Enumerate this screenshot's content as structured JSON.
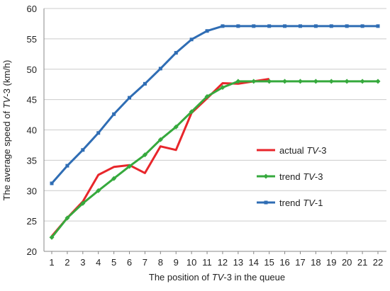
{
  "chart_data": {
    "type": "line",
    "title": "",
    "xlabel": {
      "prefix": "The position of ",
      "italic": "TV",
      "suffix": "-3 in the queue"
    },
    "ylabel": {
      "prefix": "The average speed of ",
      "italic": "TV",
      "suffix": "-3 (km/h)"
    },
    "x": [
      1,
      2,
      3,
      4,
      5,
      6,
      7,
      8,
      9,
      10,
      11,
      12,
      13,
      14,
      15,
      16,
      17,
      18,
      19,
      20,
      21,
      22
    ],
    "x_tick_labels": [
      "1",
      "2",
      "3",
      "4",
      "5",
      "6",
      "7",
      "8",
      "9",
      "10",
      "11",
      "12",
      "13",
      "14",
      "15",
      "16",
      "17",
      "18",
      "19",
      "20",
      "21",
      "22"
    ],
    "y_tick_labels": [
      "20",
      "25",
      "30",
      "35",
      "40",
      "45",
      "50",
      "55",
      "60"
    ],
    "ylim": [
      20,
      60
    ],
    "xlim": [
      1,
      22
    ],
    "grid": {
      "horizontal": true,
      "vertical": false
    },
    "legend_placement": "right-middle",
    "series": [
      {
        "name": {
          "prefix": "actual ",
          "italic": "TV",
          "suffix": "-3"
        },
        "color": "#e8262b",
        "marker": "none",
        "x": [
          1,
          2,
          3,
          4,
          5,
          6,
          7,
          8,
          9,
          10,
          11,
          12,
          13,
          14,
          15
        ],
        "values": [
          22.5,
          25.5,
          28.2,
          32.6,
          33.9,
          34.2,
          32.9,
          37.3,
          36.7,
          42.8,
          45.2,
          47.7,
          47.6,
          48.0,
          48.4
        ]
      },
      {
        "name": {
          "prefix": "trend ",
          "italic": "TV",
          "suffix": "-3"
        },
        "color": "#36a93d",
        "marker": "diamond",
        "x": [
          1,
          2,
          3,
          4,
          5,
          6,
          7,
          8,
          9,
          10,
          11,
          12,
          13,
          14,
          15,
          16,
          17,
          18,
          19,
          20,
          21,
          22
        ],
        "values": [
          22.3,
          25.5,
          27.9,
          30.0,
          32.0,
          34.0,
          35.9,
          38.4,
          40.5,
          43.0,
          45.5,
          47.0,
          48.0,
          48.0,
          48.0,
          48.0,
          48.0,
          48.0,
          48.0,
          48.0,
          48.0,
          48.0
        ]
      },
      {
        "name": {
          "prefix": "trend ",
          "italic": "TV",
          "suffix": "-1"
        },
        "color": "#2f6db4",
        "marker": "square",
        "x": [
          1,
          2,
          3,
          4,
          5,
          6,
          7,
          8,
          9,
          10,
          11,
          12,
          13,
          14,
          15,
          16,
          17,
          18,
          19,
          20,
          21,
          22
        ],
        "values": [
          31.2,
          34.1,
          36.7,
          39.5,
          42.6,
          45.3,
          47.6,
          50.1,
          52.7,
          54.9,
          56.3,
          57.1,
          57.1,
          57.1,
          57.1,
          57.1,
          57.1,
          57.1,
          57.1,
          57.1,
          57.1,
          57.1
        ]
      }
    ]
  },
  "colors": {
    "axis": "#888888",
    "grid": "#cccccc",
    "text": "#222222"
  }
}
